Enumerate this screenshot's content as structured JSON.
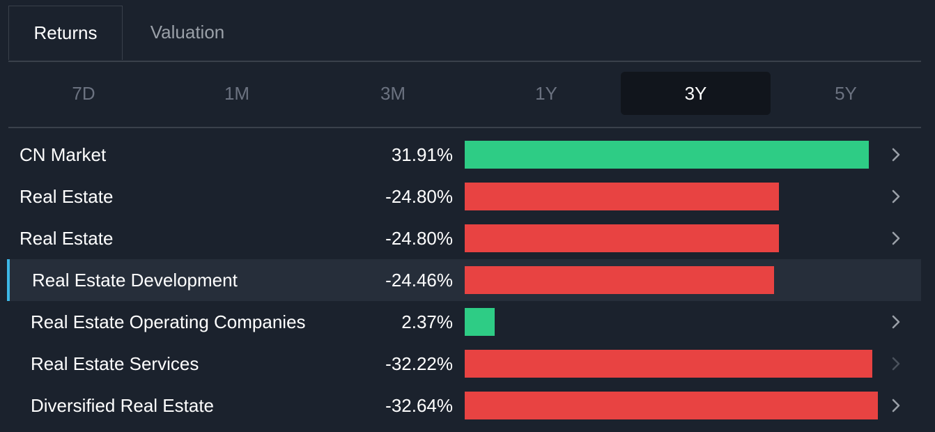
{
  "tabs": {
    "returns": "Returns",
    "valuation": "Valuation"
  },
  "periods": [
    "7D",
    "1M",
    "3M",
    "1Y",
    "3Y",
    "5Y"
  ],
  "active_period": "3Y",
  "colors": {
    "positive": "#2ecc85",
    "negative": "#e84342",
    "highlight_accent": "#3db8e6"
  },
  "max_abs_value": 32.64,
  "rows": [
    {
      "label": "CN Market",
      "value_text": "31.91%",
      "value": 31.91,
      "chevron": "chevron-right-icon"
    },
    {
      "label": "Real Estate",
      "value_text": "-24.80%",
      "value": -24.8,
      "chevron": "chevron-right-icon"
    },
    {
      "label": "Real Estate",
      "value_text": "-24.80%",
      "value": -24.8,
      "chevron": "chevron-right-icon"
    },
    {
      "label": "Real Estate Development",
      "value_text": "-24.46%",
      "value": -24.46,
      "chevron": "",
      "selected": true
    },
    {
      "label": "Real Estate Operating Companies",
      "value_text": "2.37%",
      "value": 2.37,
      "chevron": "chevron-right-icon"
    },
    {
      "label": "Real Estate Services",
      "value_text": "-32.22%",
      "value": -32.22,
      "chevron": "chevron-right-icon"
    },
    {
      "label": "Diversified Real Estate",
      "value_text": "-32.64%",
      "value": -32.64,
      "chevron": "chevron-right-icon"
    }
  ]
}
